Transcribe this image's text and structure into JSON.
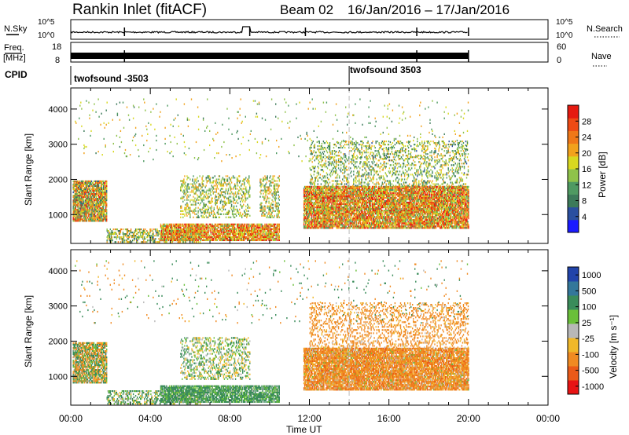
{
  "header": {
    "station": "Rankin Inlet (fitACF)",
    "beam": "Beam 02",
    "date_range": "16/Jan/2016 – 17/Jan/2016"
  },
  "nsky_panel": {
    "label": "N.Sky",
    "right_label": "N.Search",
    "left_ticks": [
      "10^5",
      "10^0"
    ],
    "right_ticks": [
      "10^5",
      "10^0"
    ]
  },
  "freq_panel": {
    "label_line1": "Freq.",
    "label_line2": "[MHz]",
    "right_label": "Nave",
    "left_ticks": [
      "18",
      "8"
    ],
    "right_ticks": [
      "60",
      "0"
    ]
  },
  "cpid_panel": {
    "label": "CPID",
    "segments": [
      {
        "name": "twofsound -3503",
        "start_hour": 0
      },
      {
        "name": "twofsound 3503",
        "start_hour": 14
      }
    ]
  },
  "colors": {
    "power": [
      "#1a1aff",
      "#2a4fa0",
      "#3c7a5a",
      "#4f9a62",
      "#8fc24a",
      "#d8d820",
      "#f2a21c",
      "#f07818",
      "#ee4a14",
      "#e51a10"
    ],
    "velocity": [
      "#2244aa",
      "#33779a",
      "#3a8c5a",
      "#6abf3a",
      "#b8b8b8",
      "#f0b82a",
      "#f08a22",
      "#ea5a18",
      "#e81414"
    ]
  },
  "chart_data": [
    {
      "type": "heatmap",
      "title": "Power",
      "ylabel": "Slant Range [km]",
      "xlabel": "",
      "x_ticks": [
        "00:00",
        "04:00",
        "08:00",
        "12:00",
        "16:00",
        "20:00",
        "00:00"
      ],
      "xlim_hours": [
        0,
        24
      ],
      "ylim_km": [
        180,
        4600
      ],
      "y_ticks": [
        1000,
        2000,
        3000,
        4000
      ],
      "colorbar": {
        "label": "Power [dB]",
        "ticks": [
          4,
          8,
          12,
          16,
          20,
          24,
          28
        ],
        "range": [
          0,
          32
        ]
      },
      "blobs": [
        {
          "h0": 0.1,
          "h1": 1.8,
          "r0": 800,
          "r1": 1950,
          "vmin": 6,
          "vmax": 30,
          "dens": 0.85
        },
        {
          "h0": 1.8,
          "h1": 6.5,
          "r0": 200,
          "r1": 600,
          "vmin": 6,
          "vmax": 24,
          "dens": 0.45
        },
        {
          "h0": 4.5,
          "h1": 10.5,
          "r0": 250,
          "r1": 750,
          "vmin": 12,
          "vmax": 32,
          "dens": 0.8
        },
        {
          "h0": 5.5,
          "h1": 9.0,
          "r0": 900,
          "r1": 2100,
          "vmin": 8,
          "vmax": 22,
          "dens": 0.3
        },
        {
          "h0": 9.5,
          "h1": 10.5,
          "r0": 900,
          "r1": 2100,
          "vmin": 8,
          "vmax": 24,
          "dens": 0.35
        },
        {
          "h0": 11.7,
          "h1": 20.0,
          "r0": 600,
          "r1": 1800,
          "vmin": 10,
          "vmax": 32,
          "dens": 0.85
        },
        {
          "h0": 12.0,
          "h1": 20.0,
          "r0": 1800,
          "r1": 3100,
          "vmin": 6,
          "vmax": 22,
          "dens": 0.25
        },
        {
          "h0": 0.2,
          "h1": 20.0,
          "r0": 2500,
          "r1": 4300,
          "vmin": 8,
          "vmax": 22,
          "dens": 0.02
        }
      ]
    },
    {
      "type": "heatmap",
      "title": "Velocity",
      "ylabel": "Slant Range [km]",
      "xlabel": "Time UT",
      "x_ticks": [
        "00:00",
        "04:00",
        "08:00",
        "12:00",
        "16:00",
        "20:00",
        "00:00"
      ],
      "xlim_hours": [
        0,
        24
      ],
      "ylim_km": [
        180,
        4600
      ],
      "y_ticks": [
        1000,
        2000,
        3000,
        4000
      ],
      "colorbar": {
        "label": "Velocity [m s⁻¹]",
        "ticks": [
          1000,
          500,
          100,
          25,
          -25,
          -100,
          -500,
          -1000
        ],
        "range": [
          -1000,
          1000
        ]
      },
      "blobs": [
        {
          "h0": 0.1,
          "h1": 1.8,
          "r0": 800,
          "r1": 1950,
          "vmin": -300,
          "vmax": 300,
          "dens": 0.8
        },
        {
          "h0": 1.8,
          "h1": 6.5,
          "r0": 200,
          "r1": 600,
          "vmin": -100,
          "vmax": 300,
          "dens": 0.45
        },
        {
          "h0": 4.5,
          "h1": 10.5,
          "r0": 250,
          "r1": 750,
          "vmin": 0,
          "vmax": 300,
          "dens": 0.8
        },
        {
          "h0": 5.5,
          "h1": 9.0,
          "r0": 900,
          "r1": 2100,
          "vmin": -100,
          "vmax": 200,
          "dens": 0.3
        },
        {
          "h0": 11.7,
          "h1": 20.0,
          "r0": 600,
          "r1": 1800,
          "vmin": -600,
          "vmax": 50,
          "dens": 0.85
        },
        {
          "h0": 12.0,
          "h1": 20.0,
          "r0": 1800,
          "r1": 3100,
          "vmin": -500,
          "vmax": 0,
          "dens": 0.25
        },
        {
          "h0": 0.2,
          "h1": 20.0,
          "r0": 2500,
          "r1": 4300,
          "vmin": -500,
          "vmax": 500,
          "dens": 0.02
        }
      ]
    }
  ]
}
